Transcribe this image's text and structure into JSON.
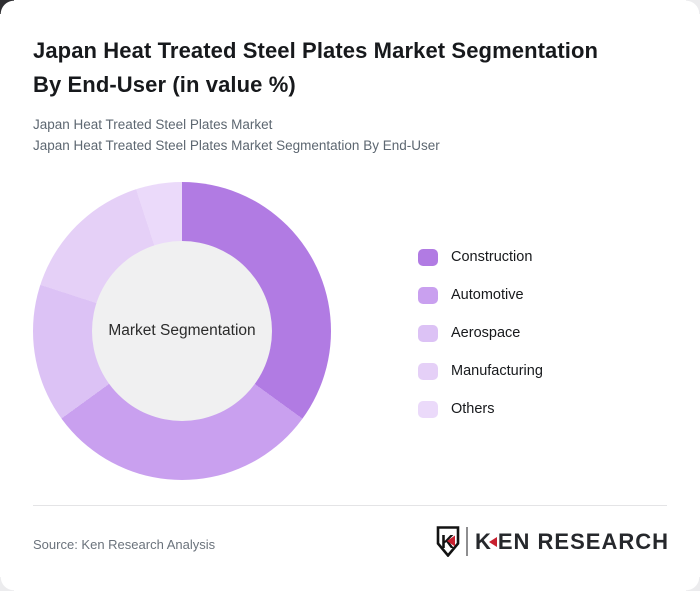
{
  "page": {
    "title": "Japan Heat Treated Steel Plates Market Segmentation By End-User (in value %)",
    "title_lines": [
      "Japan Heat Treated Steel Plates Market Segmentation",
      "By End-User (in value %)"
    ],
    "subtitles": [
      "Japan Heat Treated Steel Plates Market",
      "Japan Heat Treated Steel Plates Market Segmentation By End-User"
    ],
    "source": "Source: Ken Research Analysis",
    "brand": {
      "badge_letter": "K",
      "wordmark_k": "K",
      "wordmark_rest": "EN RESEARCH",
      "accent_color": "#c8202f",
      "text_color": "#26282c"
    }
  },
  "chart_data": {
    "type": "pie",
    "donut": true,
    "title": "Japan Heat Treated Steel Plates Market Segmentation By End-User (in value %)",
    "center_label": "Market Segmentation",
    "labels": [
      "Construction",
      "Automotive",
      "Aerospace",
      "Manufacturing",
      "Others"
    ],
    "values": [
      35,
      30,
      15,
      15,
      5
    ],
    "unit": "%",
    "colors": [
      "#b17be3",
      "#c9a0ef",
      "#dcc2f5",
      "#e5d0f7",
      "#ebdafa"
    ],
    "inner_circle_color": "#f0f0f1",
    "start_angle_deg": 0,
    "direction": "clockwise",
    "legend_position": "right",
    "data_labels_shown": false
  }
}
